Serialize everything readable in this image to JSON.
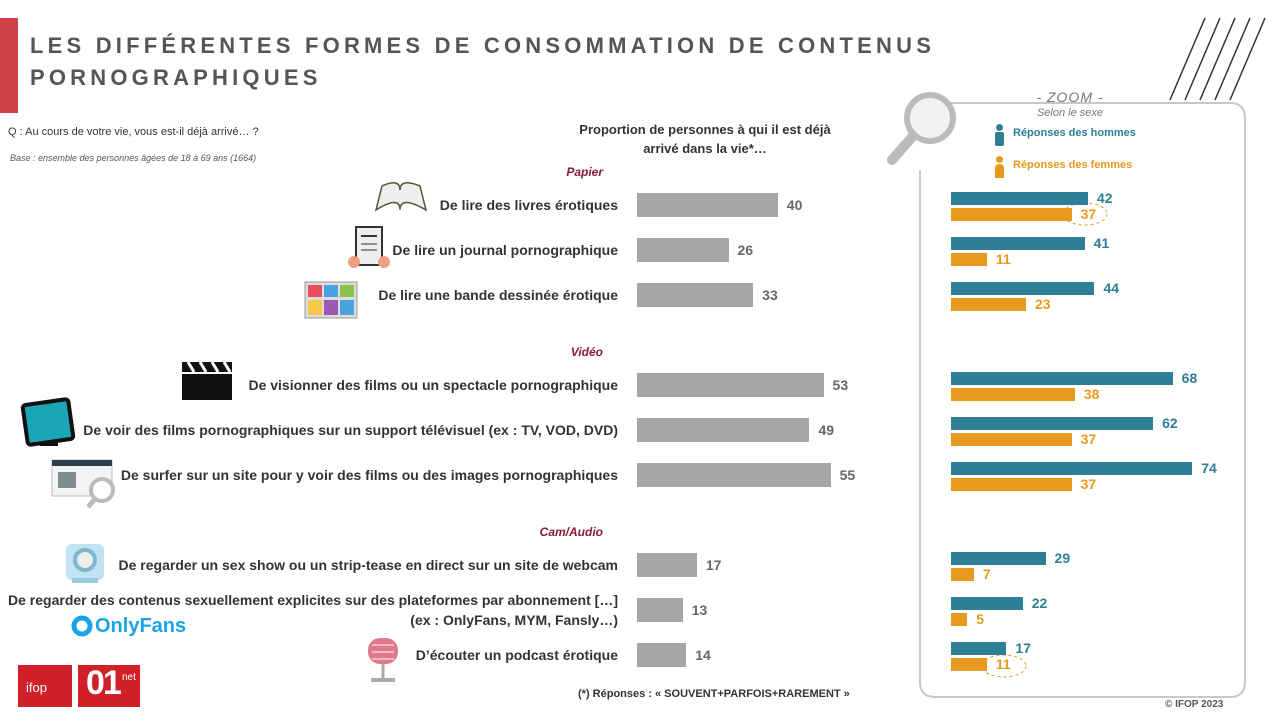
{
  "title": "LES DIFFÉRENTES FORMES DE CONSOMMATION DE CONTENUS PORNOGRAPHIQUES",
  "question": "Q : Au cours de votre vie, vous est-il déjà arrivé… ?",
  "base": "Base : ensemble des personnes âgées de 18 à 69 ans (1664)",
  "footnote": "(*) Réponses : « SOUVENT+PARFOIS+RAREMENT »",
  "copyright": "© IFOP 2023",
  "logos": {
    "ifop": "ifop",
    "brand": "01",
    "brand_suffix": "net",
    "onlyfans": "OnlyFans"
  },
  "chart_data": [
    {
      "type": "bar",
      "orientation": "horizontal",
      "color": "#a6a6a6",
      "title": "Proportion de personnes à qui il est déjà arrivé dans la vie*…",
      "groups": [
        {
          "name": "Papier",
          "categories": [
            "De lire des livres érotiques",
            "De lire un journal pornographique",
            "De lire une bande dessinée érotique"
          ],
          "values": [
            40,
            26,
            33
          ]
        },
        {
          "name": "Vidéo",
          "categories": [
            "De visionner des films ou un spectacle pornographique",
            "De voir des films pornographiques sur un support télévisuel (ex : TV, VOD, DVD)",
            "De surfer sur un site pour y voir des films ou des images pornographiques"
          ],
          "values": [
            53,
            49,
            55
          ]
        },
        {
          "name": "Cam/Audio",
          "categories": [
            "De regarder un sex show ou un strip-tease en direct sur un site de webcam",
            "De regarder des contenus sexuellement explicites sur des plateformes par abonnement […]\n(ex : OnlyFans, MYM, Fansly…)",
            "D’écouter un podcast érotique"
          ],
          "values": [
            17,
            13,
            14
          ]
        }
      ]
    },
    {
      "type": "bar",
      "orientation": "horizontal",
      "title": "- ZOOM -",
      "subtitle": "Selon le sexe",
      "series": [
        {
          "name": "Réponses des hommes",
          "color": "#2e7f95",
          "values": [
            42,
            41,
            44,
            68,
            62,
            74,
            29,
            22,
            17
          ]
        },
        {
          "name": "Réponses des femmes",
          "color": "#e89a1e",
          "values": [
            37,
            11,
            23,
            38,
            37,
            37,
            7,
            5,
            11
          ]
        }
      ]
    }
  ]
}
